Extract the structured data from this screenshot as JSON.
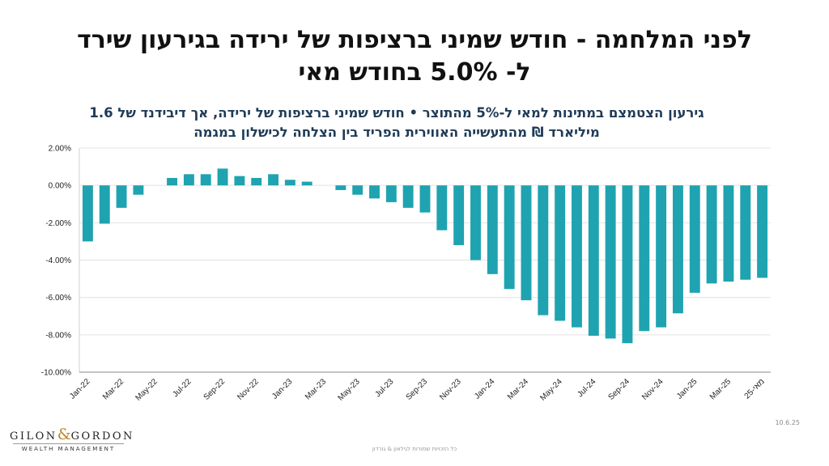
{
  "title_line1": "לפני המלחמה - חודש שמיני ברציפות של ירידה בגירעון שירד",
  "title_line2": "ל- 5.0% בחודש מאי",
  "subtitle_line1": "גירעון הצטמצם במתינות למאי ל-5% מהתוצר • חודש שמיני ברציפות של ירידה, אך דיבידנד של 1.6",
  "subtitle_line2": "מיליארד ₪ מהתעשייה האווירית הפריד בין הצלחה לכישלון במגמה",
  "logo": {
    "main_left": "GILON",
    "ampersand": "&",
    "main_right": "GORDON",
    "sub": "WEALTH MANAGEMENT"
  },
  "date": "10.6.25",
  "footer": "כל הזכויות שמורות לגילאון & גורדון",
  "chart_data": {
    "type": "bar",
    "color": "#1fa3b0",
    "ylim": [
      -10,
      2
    ],
    "y_ticks": [
      2,
      0,
      -2,
      -4,
      -6,
      -8,
      -10
    ],
    "y_tick_labels": [
      "2.00%",
      "0.00%",
      "-2.00%",
      "-4.00%",
      "-6.00%",
      "-8.00%",
      "-10.00%"
    ],
    "grid": true,
    "categories": [
      "Jan-22",
      "Feb-22",
      "Mar-22",
      "Apr-22",
      "May-22",
      "Jun-22",
      "Jul-22",
      "Aug-22",
      "Sep-22",
      "Oct-22",
      "Nov-22",
      "Dec-22",
      "Jan-23",
      "Feb-23",
      "Mar-23",
      "Apr-23",
      "May-23",
      "Jun-23",
      "Jul-23",
      "Aug-23",
      "Sep-23",
      "Oct-23",
      "Nov-23",
      "Dec-23",
      "Jan-24",
      "Feb-24",
      "Mar-24",
      "Apr-24",
      "May-24",
      "Jun-24",
      "Jul-24",
      "Aug-24",
      "Sep-24",
      "Oct-24",
      "Nov-24",
      "Dec-24",
      "Jan-25",
      "Feb-25",
      "Mar-25",
      "Apr-25",
      "מאי-25"
    ],
    "x_tick_labels": [
      "Jan-22",
      "",
      "Mar-22",
      "",
      "May-22",
      "",
      "Jul-22",
      "",
      "Sep-22",
      "",
      "Nov-22",
      "",
      "Jan-23",
      "",
      "Mar-23",
      "",
      "May-23",
      "",
      "Jul-23",
      "",
      "Sep-23",
      "",
      "Nov-23",
      "",
      "Jan-24",
      "",
      "Mar-24",
      "",
      "May-24",
      "",
      "Jul-24",
      "",
      "Sep-24",
      "",
      "Nov-24",
      "",
      "Jan-25",
      "",
      "Mar-25",
      "",
      "מאי-25"
    ],
    "values": [
      -3.0,
      -2.05,
      -1.2,
      -0.5,
      null,
      0.4,
      0.6,
      0.6,
      0.9,
      0.5,
      0.4,
      0.6,
      0.3,
      0.2,
      null,
      -0.25,
      -0.5,
      -0.7,
      -0.9,
      -1.2,
      -1.45,
      -2.4,
      -3.2,
      -4.0,
      -4.75,
      -5.55,
      -6.15,
      -6.95,
      -7.25,
      -7.6,
      -8.05,
      -8.2,
      -8.45,
      -7.8,
      -7.6,
      -6.85,
      -5.75,
      -5.25,
      -5.15,
      -5.05,
      -4.95
    ]
  }
}
